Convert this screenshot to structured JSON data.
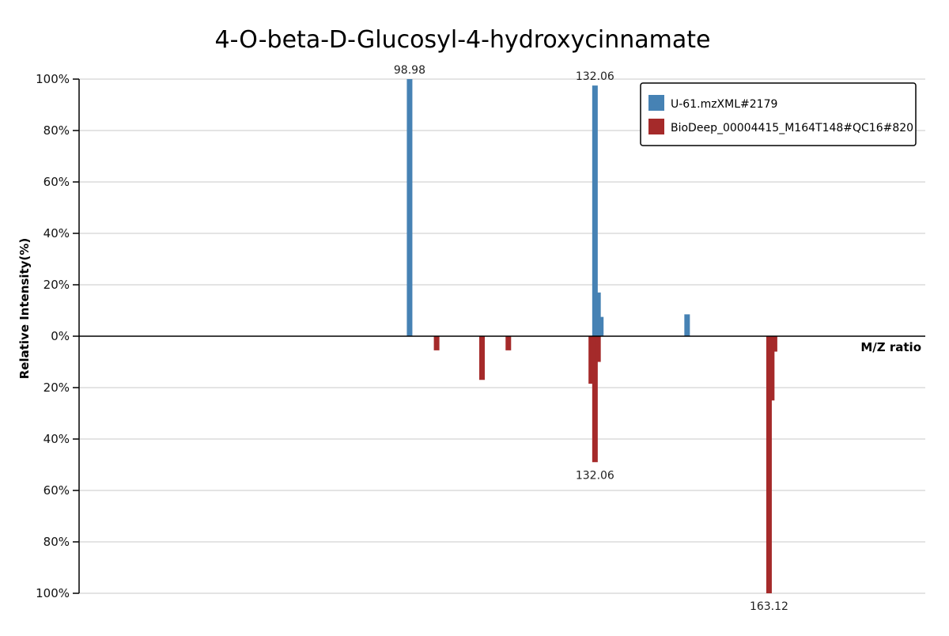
{
  "chart_data": {
    "type": "bar",
    "title": "4-O-beta-D-Glucosyl-4-hydroxycinnamate",
    "xlabel": "M/Z ratio",
    "ylabel": "Relative Intensity(%)",
    "y_ticks_top": [
      "100%",
      "80%",
      "60%",
      "40%",
      "20%",
      "0%"
    ],
    "y_ticks_bottom": [
      "20%",
      "40%",
      "60%",
      "80%",
      "100%"
    ],
    "ylim": [
      -100,
      100
    ],
    "xlim": [
      40,
      191
    ],
    "grid": true,
    "legend_position": "top-right",
    "series": [
      {
        "name": "U-61.mzXML#2179",
        "color": "#4682B4",
        "direction": "up",
        "peaks": [
          {
            "mz": 98.98,
            "intensity": 100,
            "label": "98.98"
          },
          {
            "mz": 132.06,
            "intensity": 97.5,
            "label": "132.06"
          },
          {
            "mz": 132.6,
            "intensity": 17
          },
          {
            "mz": 133.1,
            "intensity": 7.5
          },
          {
            "mz": 148.5,
            "intensity": 8.5
          }
        ]
      },
      {
        "name": "BioDeep_00004415_M164T148#QC16#820",
        "color": "#A52A2A",
        "direction": "down",
        "peaks": [
          {
            "mz": 103.8,
            "intensity": 5.5
          },
          {
            "mz": 111.9,
            "intensity": 17
          },
          {
            "mz": 116.6,
            "intensity": 5.5
          },
          {
            "mz": 131.4,
            "intensity": 18.5
          },
          {
            "mz": 132.06,
            "intensity": 49,
            "label": "132.06"
          },
          {
            "mz": 132.6,
            "intensity": 10
          },
          {
            "mz": 163.12,
            "intensity": 100,
            "label": "163.12"
          },
          {
            "mz": 163.6,
            "intensity": 25
          },
          {
            "mz": 164.1,
            "intensity": 6
          }
        ]
      }
    ]
  }
}
